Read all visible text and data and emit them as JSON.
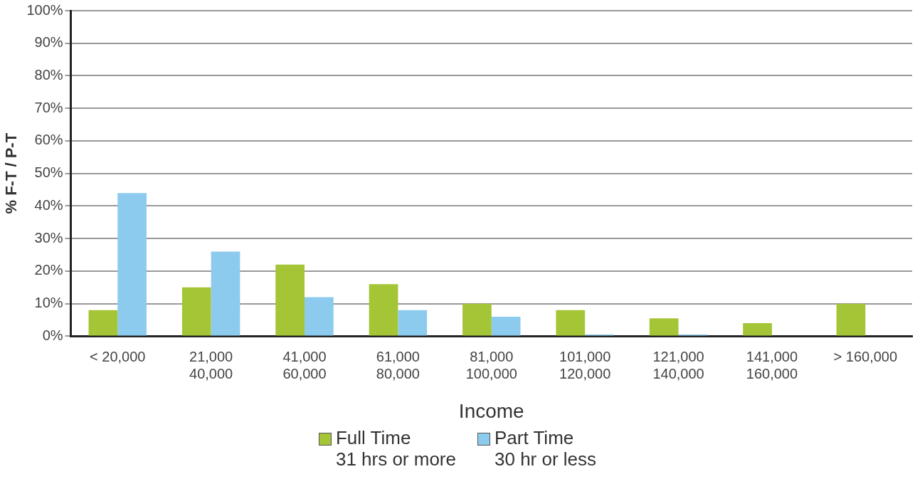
{
  "chart_data": {
    "type": "bar",
    "xlabel": "Income",
    "ylabel": "% F-T / P-T",
    "categories": [
      "< 20,000",
      "21,000\n40,000",
      "41,000\n60,000",
      "61,000\n80,000",
      "81,000\n100,000",
      "101,000\n120,000",
      "121,000\n140,000",
      "141,000\n160,000",
      "> 160,000"
    ],
    "series": [
      {
        "name": "Full Time\n31 hrs or more",
        "color": "#a3c536",
        "values": [
          8,
          15,
          22,
          16,
          10,
          8,
          5.5,
          4,
          10
        ]
      },
      {
        "name": "Part Time\n30 hr or less",
        "color": "#8ccbee",
        "values": [
          44,
          26,
          12,
          8,
          6,
          0.5,
          0.5,
          null,
          null
        ]
      }
    ],
    "ylim": [
      0,
      100
    ],
    "yticks": [
      {
        "value": 0,
        "label": "0%"
      },
      {
        "value": 10,
        "label": "10%"
      },
      {
        "value": 20,
        "label": "20%"
      },
      {
        "value": 30,
        "label": "30%"
      },
      {
        "value": 40,
        "label": "40%"
      },
      {
        "value": 50,
        "label": "50%"
      },
      {
        "value": 60,
        "label": "60%"
      },
      {
        "value": 70,
        "label": "70%"
      },
      {
        "value": 80,
        "label": "80%"
      },
      {
        "value": 90,
        "label": "90%"
      },
      {
        "value": 100,
        "label": "100%"
      }
    ],
    "grid": "y",
    "legend": "bottom"
  }
}
